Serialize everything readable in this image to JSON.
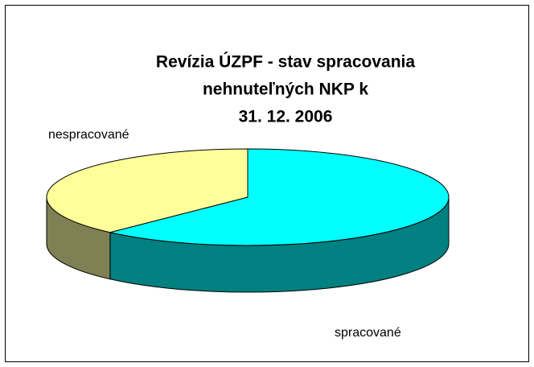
{
  "chart_data": {
    "type": "pie",
    "title_lines": [
      "Revízia ÚZPF - stav spracovania",
      "nehnuteľných NKP k",
      "31. 12. 2006"
    ],
    "categories": [
      "spracované",
      "nespracované"
    ],
    "values": [
      62,
      38
    ],
    "colors": [
      "#00ffff",
      "#ffff99"
    ],
    "side_colors": [
      "#008080",
      "#808055"
    ]
  }
}
